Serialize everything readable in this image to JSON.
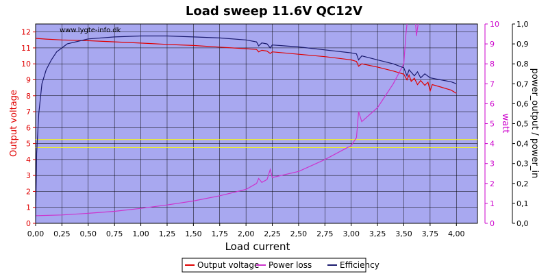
{
  "chart_data": {
    "type": "line",
    "title": "Load sweep 11.6V QC12V",
    "watermark": "www.lygte-info.dk",
    "xlabel": "Load current",
    "x_ticks": [
      "0,00",
      "0,25",
      "0,50",
      "0,75",
      "1,00",
      "1,25",
      "1,50",
      "1,75",
      "2,00",
      "2,25",
      "2,50",
      "2,75",
      "3,00",
      "3,25",
      "3,50",
      "3,75",
      "4,00"
    ],
    "xlim": [
      0,
      4.2
    ],
    "left_axis": {
      "label": "Output voltage",
      "ylim": [
        0,
        12.5
      ],
      "ticks": [
        "0",
        "1",
        "2",
        "3",
        "4",
        "5",
        "6",
        "7",
        "8",
        "9",
        "10",
        "11",
        "12"
      ],
      "color": "#e00000"
    },
    "right_axis_1": {
      "label": "watt",
      "ylim": [
        0,
        10
      ],
      "ticks": [
        "0",
        "1",
        "2",
        "3",
        "4",
        "5",
        "6",
        "7",
        "8",
        "9",
        "10"
      ],
      "color": "#cc00cc"
    },
    "right_axis_2": {
      "label": "power_output / power_in",
      "ylim": [
        0,
        1.0
      ],
      "ticks": [
        "0,0",
        "0,1",
        "0,2",
        "0,3",
        "0,4",
        "0,5",
        "0,6",
        "0,7",
        "0,8",
        "0,9",
        "1,0"
      ],
      "color": "#000000"
    },
    "reference_lines_voltage": [
      4.75,
      5.25
    ],
    "legend_position": "bottom-center",
    "grid": true,
    "colors": {
      "plot_bg": "#a8a8f0",
      "grid": "#000000",
      "output_voltage": "#e00000",
      "power_loss": "#cc33cc",
      "efficiency": "#1a1a6e",
      "reference": "#ffff00"
    },
    "series": [
      {
        "name": "Output voltage",
        "axis": "left",
        "points": [
          [
            0,
            11.6
          ],
          [
            0.1,
            11.55
          ],
          [
            0.25,
            11.5
          ],
          [
            0.5,
            11.45
          ],
          [
            0.75,
            11.38
          ],
          [
            1.0,
            11.3
          ],
          [
            1.25,
            11.22
          ],
          [
            1.5,
            11.15
          ],
          [
            1.75,
            11.05
          ],
          [
            2.0,
            10.95
          ],
          [
            2.1,
            10.9
          ],
          [
            2.12,
            10.75
          ],
          [
            2.15,
            10.85
          ],
          [
            2.2,
            10.8
          ],
          [
            2.23,
            10.65
          ],
          [
            2.25,
            10.75
          ],
          [
            2.5,
            10.6
          ],
          [
            2.75,
            10.45
          ],
          [
            3.0,
            10.25
          ],
          [
            3.05,
            10.15
          ],
          [
            3.07,
            9.85
          ],
          [
            3.1,
            10.0
          ],
          [
            3.25,
            9.8
          ],
          [
            3.4,
            9.55
          ],
          [
            3.5,
            9.35
          ],
          [
            3.53,
            9.0
          ],
          [
            3.55,
            9.3
          ],
          [
            3.57,
            8.9
          ],
          [
            3.6,
            9.1
          ],
          [
            3.63,
            8.7
          ],
          [
            3.66,
            8.95
          ],
          [
            3.7,
            8.65
          ],
          [
            3.73,
            8.85
          ],
          [
            3.75,
            8.3
          ],
          [
            3.77,
            8.7
          ],
          [
            3.85,
            8.55
          ],
          [
            3.95,
            8.35
          ],
          [
            4.0,
            8.15
          ]
        ]
      },
      {
        "name": "Power loss",
        "axis": "right1",
        "points": [
          [
            0,
            0.38
          ],
          [
            0.25,
            0.42
          ],
          [
            0.5,
            0.5
          ],
          [
            0.75,
            0.6
          ],
          [
            1.0,
            0.75
          ],
          [
            1.25,
            0.92
          ],
          [
            1.5,
            1.12
          ],
          [
            1.75,
            1.38
          ],
          [
            2.0,
            1.7
          ],
          [
            2.1,
            2.0
          ],
          [
            2.12,
            2.25
          ],
          [
            2.15,
            2.05
          ],
          [
            2.2,
            2.2
          ],
          [
            2.23,
            2.7
          ],
          [
            2.25,
            2.3
          ],
          [
            2.5,
            2.6
          ],
          [
            2.75,
            3.2
          ],
          [
            3.0,
            3.9
          ],
          [
            3.05,
            4.3
          ],
          [
            3.07,
            5.6
          ],
          [
            3.1,
            5.1
          ],
          [
            3.25,
            5.8
          ],
          [
            3.4,
            7.0
          ],
          [
            3.5,
            8.0
          ],
          [
            3.52,
            9.5
          ],
          [
            3.55,
            11
          ],
          [
            3.58,
            10.2
          ],
          [
            3.6,
            11
          ],
          [
            3.62,
            9.4
          ],
          [
            3.65,
            10.5
          ],
          [
            3.7,
            10.3
          ]
        ]
      },
      {
        "name": "Efficiency",
        "axis": "right2",
        "points": [
          [
            0,
            0
          ],
          [
            0.01,
            0.35
          ],
          [
            0.03,
            0.55
          ],
          [
            0.06,
            0.7
          ],
          [
            0.1,
            0.77
          ],
          [
            0.15,
            0.82
          ],
          [
            0.2,
            0.86
          ],
          [
            0.3,
            0.9
          ],
          [
            0.5,
            0.925
          ],
          [
            0.75,
            0.935
          ],
          [
            1.0,
            0.94
          ],
          [
            1.25,
            0.94
          ],
          [
            1.5,
            0.935
          ],
          [
            1.75,
            0.93
          ],
          [
            2.0,
            0.92
          ],
          [
            2.1,
            0.91
          ],
          [
            2.12,
            0.89
          ],
          [
            2.15,
            0.905
          ],
          [
            2.2,
            0.9
          ],
          [
            2.23,
            0.88
          ],
          [
            2.25,
            0.895
          ],
          [
            2.5,
            0.885
          ],
          [
            2.75,
            0.87
          ],
          [
            3.0,
            0.855
          ],
          [
            3.05,
            0.85
          ],
          [
            3.07,
            0.82
          ],
          [
            3.1,
            0.84
          ],
          [
            3.25,
            0.82
          ],
          [
            3.4,
            0.8
          ],
          [
            3.5,
            0.78
          ],
          [
            3.53,
            0.74
          ],
          [
            3.55,
            0.77
          ],
          [
            3.6,
            0.74
          ],
          [
            3.63,
            0.76
          ],
          [
            3.66,
            0.73
          ],
          [
            3.7,
            0.75
          ],
          [
            3.75,
            0.73
          ],
          [
            3.85,
            0.72
          ],
          [
            3.95,
            0.71
          ],
          [
            4.0,
            0.7
          ]
        ]
      }
    ]
  }
}
